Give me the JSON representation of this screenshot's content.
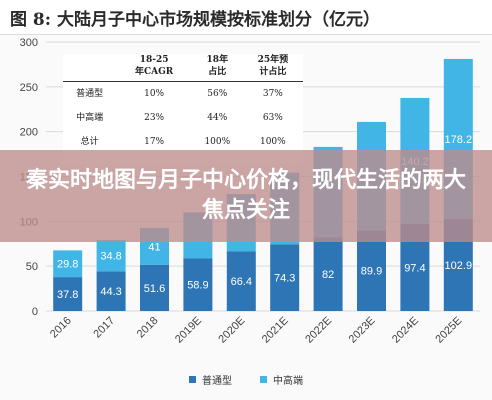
{
  "figure": {
    "title": "图 8:  大陆月子中心市场规模按标准划分（亿元）"
  },
  "overlay": {
    "text": "秦实时地图与月子中心价格，现代生活的两大焦点关注"
  },
  "table": {
    "headers": [
      "",
      "18-25\n年CAGR",
      "18年\n占比",
      "25年预\n计占比"
    ],
    "rows": [
      [
        "普通型",
        "10%",
        "56%",
        "37%"
      ],
      [
        "中高端",
        "23%",
        "44%",
        "63%"
      ],
      [
        "总计",
        "17%",
        "100%",
        "100%"
      ]
    ]
  },
  "colors": {
    "standard": "#2e75b6",
    "premium": "#41b6e6",
    "overlay": "#be8c8c"
  },
  "chart_data": {
    "type": "bar",
    "stacked": true,
    "categories": [
      "2016",
      "2017",
      "2018",
      "2019E",
      "2020E",
      "2021E",
      "2022E",
      "2023E",
      "2024E",
      "2025E"
    ],
    "series": [
      {
        "name": "普通型",
        "values": [
          37.8,
          44.3,
          51.6,
          58.9,
          66.4,
          74.3,
          82,
          89.9,
          97.4,
          102.9
        ]
      },
      {
        "name": "中高端",
        "values": [
          29.8,
          34.8,
          41,
          51,
          64,
          80,
          101,
          121,
          140.2,
          178.2
        ]
      }
    ],
    "data_labels": {
      "普通型": [
        "37.8",
        "44.3",
        "51.6",
        "58.9",
        "66.4",
        "74.3",
        "82",
        "89.9",
        "97.4",
        "102.9"
      ],
      "中高端": [
        "29.8",
        "34.8",
        "41",
        "",
        "",
        "",
        "",
        "",
        "140.2",
        "178.2"
      ]
    },
    "yticks": [
      0,
      50,
      100,
      150,
      200,
      250,
      300
    ],
    "ylim": [
      0,
      300
    ],
    "grid": true,
    "legend_position": "bottom-center"
  }
}
